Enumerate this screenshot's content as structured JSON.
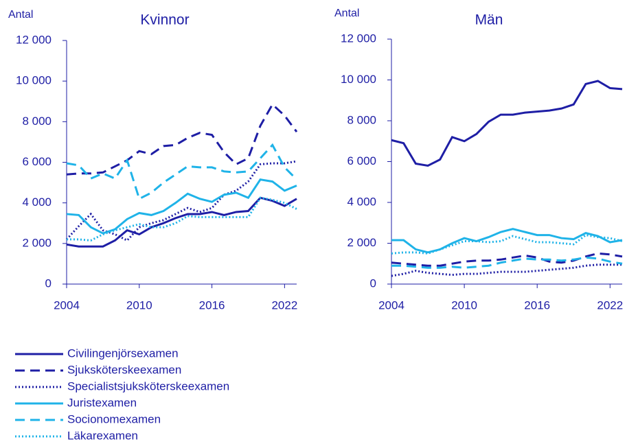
{
  "chart_data": [
    {
      "type": "line",
      "title": "Kvinnor",
      "ylabel": "Antal",
      "x": [
        2004,
        2005,
        2006,
        2007,
        2008,
        2009,
        2010,
        2011,
        2012,
        2013,
        2014,
        2015,
        2016,
        2017,
        2018,
        2019,
        2020,
        2021,
        2022,
        2023
      ],
      "xlim": [
        2004,
        2023
      ],
      "xticks": [
        2004,
        2010,
        2016,
        2022
      ],
      "ylim": [
        0,
        12000
      ],
      "yticks": [
        0,
        {
          "value": 2000,
          "label": "2 000"
        },
        {
          "value": 4000,
          "label": "4 000"
        },
        {
          "value": 6000,
          "label": "6 000"
        },
        {
          "value": 8000,
          "label": "8 000"
        },
        {
          "value": 10000,
          "label": "10 000"
        },
        {
          "value": 12000,
          "label": "12 000"
        }
      ],
      "series": [
        {
          "name": "Civilingenjörsexamen",
          "color": "#1e1ea5",
          "style": "solid",
          "values": [
            1950,
            1850,
            1850,
            1850,
            2150,
            2650,
            2450,
            2800,
            3000,
            3250,
            3450,
            3450,
            3550,
            3400,
            3550,
            3600,
            4250,
            4100,
            3850,
            4200
          ]
        },
        {
          "name": "Sjuksköterskeexamen",
          "color": "#1e1ea5",
          "style": "dashed",
          "values": [
            5400,
            5450,
            5450,
            5500,
            5800,
            6100,
            6550,
            6400,
            6800,
            6850,
            7200,
            7450,
            7350,
            6500,
            5900,
            6200,
            7800,
            8850,
            8300,
            7500
          ]
        },
        {
          "name": "Specialistsjuksköterskeexamen",
          "color": "#1e1ea5",
          "style": "dotted",
          "values": [
            2200,
            2850,
            3450,
            2650,
            2450,
            2150,
            2800,
            3000,
            3150,
            3450,
            3750,
            3550,
            3750,
            4400,
            4600,
            5050,
            5900,
            5950,
            5950,
            6050
          ]
        },
        {
          "name": "Juristexamen",
          "color": "#1fb3e8",
          "style": "solid",
          "values": [
            3450,
            3400,
            2800,
            2500,
            2700,
            3200,
            3500,
            3400,
            3600,
            4000,
            4450,
            4200,
            4050,
            4400,
            4500,
            4250,
            5150,
            5050,
            4600,
            4850
          ]
        },
        {
          "name": "Socionomexamen",
          "color": "#1fb3e8",
          "style": "dashed",
          "values": [
            5950,
            5850,
            5200,
            5450,
            5200,
            6100,
            4200,
            4500,
            5000,
            5400,
            5800,
            5750,
            5750,
            5550,
            5500,
            5550,
            6200,
            6850,
            5750,
            5150
          ]
        },
        {
          "name": "Läkarexamen",
          "color": "#1fb3e8",
          "style": "dotted",
          "values": [
            2200,
            2200,
            2150,
            2450,
            2650,
            2800,
            2950,
            2800,
            2800,
            3000,
            3350,
            3300,
            3300,
            3300,
            3300,
            3300,
            4250,
            4150,
            4000,
            3700
          ]
        }
      ]
    },
    {
      "type": "line",
      "title": "Män",
      "ylabel": "Antal",
      "x": [
        2004,
        2005,
        2006,
        2007,
        2008,
        2009,
        2010,
        2011,
        2012,
        2013,
        2014,
        2015,
        2016,
        2017,
        2018,
        2019,
        2020,
        2021,
        2022,
        2023
      ],
      "xlim": [
        2004,
        2023
      ],
      "xticks": [
        2004,
        2010,
        2016,
        2022
      ],
      "ylim": [
        0,
        12000
      ],
      "yticks": [
        0,
        {
          "value": 2000,
          "label": "2 000"
        },
        {
          "value": 4000,
          "label": "4 000"
        },
        {
          "value": 6000,
          "label": "6 000"
        },
        {
          "value": 8000,
          "label": "8 000"
        },
        {
          "value": 10000,
          "label": "10 000"
        },
        {
          "value": 12000,
          "label": "12 000"
        }
      ],
      "series": [
        {
          "name": "Civilingenjörsexamen",
          "color": "#1e1ea5",
          "style": "solid",
          "values": [
            7050,
            6900,
            5900,
            5800,
            6100,
            7200,
            7000,
            7350,
            7950,
            8300,
            8300,
            8400,
            8450,
            8500,
            8600,
            8800,
            9800,
            9950,
            9600,
            9550
          ]
        },
        {
          "name": "Sjuksköterskeexamen",
          "color": "#1e1ea5",
          "style": "dashed",
          "values": [
            1050,
            1000,
            950,
            900,
            900,
            1000,
            1100,
            1150,
            1150,
            1200,
            1300,
            1400,
            1300,
            1100,
            1050,
            1150,
            1350,
            1500,
            1450,
            1350
          ]
        },
        {
          "name": "Specialistsjuksköterskeexamen",
          "color": "#1e1ea5",
          "style": "dotted",
          "values": [
            400,
            500,
            650,
            550,
            500,
            450,
            500,
            500,
            550,
            600,
            600,
            600,
            650,
            700,
            750,
            800,
            900,
            950,
            950,
            950
          ]
        },
        {
          "name": "Juristexamen",
          "color": "#1fb3e8",
          "style": "solid",
          "values": [
            2150,
            2150,
            1700,
            1550,
            1700,
            2000,
            2250,
            2100,
            2300,
            2550,
            2700,
            2550,
            2400,
            2400,
            2250,
            2200,
            2500,
            2350,
            2050,
            2150
          ]
        },
        {
          "name": "Socionomexamen",
          "color": "#1fb3e8",
          "style": "dashed",
          "values": [
            900,
            900,
            850,
            800,
            800,
            850,
            800,
            850,
            900,
            1050,
            1150,
            1250,
            1200,
            1200,
            1150,
            1200,
            1300,
            1250,
            1100,
            1000
          ]
        },
        {
          "name": "Läkarexamen",
          "color": "#1fb3e8",
          "style": "dotted",
          "values": [
            1500,
            1550,
            1550,
            1500,
            1700,
            1900,
            2100,
            2100,
            2050,
            2100,
            2350,
            2200,
            2050,
            2050,
            2000,
            1950,
            2400,
            2300,
            2250,
            2100
          ]
        }
      ]
    }
  ]
}
